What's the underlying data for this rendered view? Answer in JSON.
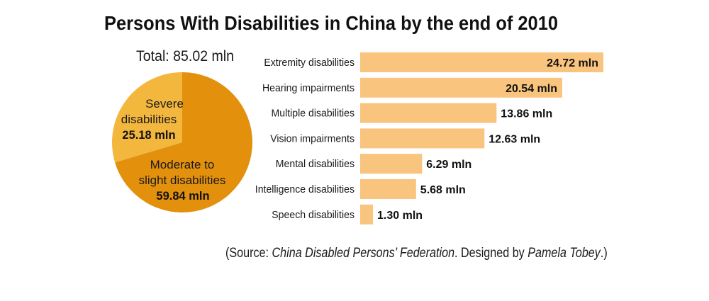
{
  "title": "Persons With Disabilities in China by the end of 2010",
  "chart_data": [
    {
      "type": "pie",
      "title": "Total: 85.02 mln",
      "total": 85.02,
      "slices": [
        {
          "label_lines": [
            "Severe",
            "disabilities"
          ],
          "value": 25.18,
          "value_label": "25.18 mln",
          "color": "#F4B73D"
        },
        {
          "label_lines": [
            "Moderate to",
            "slight disabilities"
          ],
          "value": 59.84,
          "value_label": "59.84 mln",
          "color": "#E3900D"
        }
      ]
    },
    {
      "type": "bar",
      "categories": [
        "Extremity disabilities",
        "Hearing impairments",
        "Multiple disabilities",
        "Vision impairments",
        "Mental disabilities",
        "Intelligence disabilities",
        "Speech disabilities"
      ],
      "values": [
        24.72,
        20.54,
        13.86,
        12.63,
        6.29,
        5.68,
        1.3
      ],
      "value_labels": [
        "24.72 mln",
        "20.54 mln",
        "13.86 mln",
        "12.63 mln",
        "6.29 mln",
        "5.68 mln",
        "1.30 mln"
      ],
      "color": "#F9C47E",
      "xlim": [
        0,
        24.72
      ]
    }
  ],
  "source_note": {
    "prefix": "(Source: ",
    "organization": "China Disabled Persons’ Federation",
    "middle": ". Designed by ",
    "designer": "Pamela Tobey",
    "suffix": ".)"
  }
}
